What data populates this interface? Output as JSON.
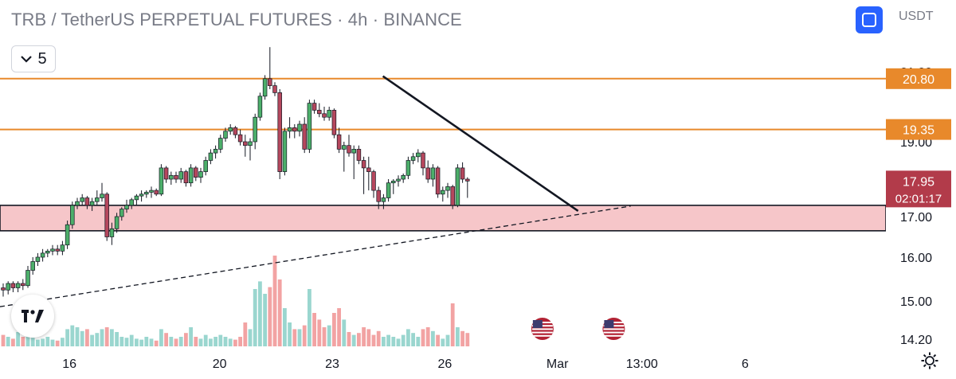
{
  "header": {
    "symbol_title": "TRB / TetherUS PERPETUAL FUTURES · 4h · BINANCE",
    "currency": "USDT",
    "indicator_count": "5"
  },
  "icons": {
    "fullscreen": "fullscreen-icon",
    "collapse": "chevron-down-icon",
    "settings": "gear-icon",
    "logo": "tradingview-logo-icon",
    "event": "us-flag-icon"
  },
  "colors": {
    "bull": "#4caf6a",
    "bear": "#b5475d",
    "bull_volume": "#9ad6cf",
    "bear_volume": "#f2a3a3",
    "level_line": "#e8892b",
    "zone_fill": "#f6c6c9",
    "current_price_bg": "#b23b4a"
  },
  "chart_data": {
    "type": "candlestick",
    "x_axis": {
      "ticks": [
        {
          "label": "16",
          "x": 1.0
        },
        {
          "label": "20",
          "x": 5.0
        },
        {
          "label": "23",
          "x": 8.0
        },
        {
          "label": "26",
          "x": 11.0
        },
        {
          "label": "Mar",
          "x": 14.0
        },
        {
          "label": "13:00",
          "x": 16.25
        },
        {
          "label": "6",
          "x": 19.0
        }
      ],
      "range_days": [
        -0.85,
        22.75
      ]
    },
    "y_axis": {
      "ticks": [
        "21.00",
        "19.00",
        "17.00",
        "16.00",
        "15.00",
        "14.20"
      ],
      "range": [
        14.1,
        21.4
      ]
    },
    "current_price": {
      "value": "17.95",
      "countdown": "02:01:17"
    },
    "horizontal_levels": [
      {
        "value": 20.8,
        "label": "20.80"
      },
      {
        "value": 19.35,
        "label": "19.35"
      }
    ],
    "zone": {
      "top": 17.3,
      "bottom": 16.65
    },
    "trendlines": [
      {
        "style": "solid",
        "from": {
          "day": 9.35,
          "price": 20.87
        },
        "to": {
          "day": 14.55,
          "price": 17.15
        }
      },
      {
        "style": "dashed",
        "from": {
          "day": -0.85,
          "price": 14.88
        },
        "to": {
          "day": 15.95,
          "price": 17.28
        }
      }
    ],
    "event_markers": [
      {
        "day": 13.6
      },
      {
        "day": 15.5
      }
    ],
    "candles_ohlc": [
      [
        15.3,
        15.4,
        15.1,
        15.25
      ],
      [
        15.25,
        15.45,
        15.15,
        15.4
      ],
      [
        15.4,
        15.45,
        15.2,
        15.3
      ],
      [
        15.3,
        15.45,
        15.2,
        15.4
      ],
      [
        15.4,
        15.5,
        15.25,
        15.35
      ],
      [
        15.35,
        15.8,
        15.3,
        15.7
      ],
      [
        15.7,
        16.0,
        15.6,
        15.9
      ],
      [
        15.9,
        16.1,
        15.8,
        16.0
      ],
      [
        16.0,
        16.2,
        15.9,
        16.1
      ],
      [
        16.1,
        16.2,
        16.0,
        16.15
      ],
      [
        16.15,
        16.3,
        16.05,
        16.2
      ],
      [
        16.2,
        16.3,
        16.05,
        16.15
      ],
      [
        16.15,
        16.4,
        16.05,
        16.3
      ],
      [
        16.3,
        16.9,
        16.2,
        16.8
      ],
      [
        16.8,
        17.4,
        16.7,
        17.3
      ],
      [
        17.3,
        17.5,
        17.2,
        17.4
      ],
      [
        17.4,
        17.6,
        17.3,
        17.5
      ],
      [
        17.5,
        17.55,
        17.2,
        17.3
      ],
      [
        17.3,
        17.5,
        17.15,
        17.4
      ],
      [
        17.4,
        17.7,
        17.3,
        17.5
      ],
      [
        17.5,
        17.9,
        17.4,
        17.6
      ],
      [
        17.6,
        17.65,
        16.4,
        16.5
      ],
      [
        16.5,
        16.85,
        16.3,
        16.7
      ],
      [
        16.7,
        17.1,
        16.6,
        17.0
      ],
      [
        17.0,
        17.25,
        16.9,
        17.2
      ],
      [
        17.2,
        17.45,
        17.1,
        17.3
      ],
      [
        17.3,
        17.5,
        17.2,
        17.45
      ],
      [
        17.45,
        17.6,
        17.3,
        17.55
      ],
      [
        17.55,
        17.7,
        17.4,
        17.6
      ],
      [
        17.6,
        17.7,
        17.5,
        17.65
      ],
      [
        17.65,
        17.8,
        17.5,
        17.7
      ],
      [
        17.7,
        17.75,
        17.55,
        17.6
      ],
      [
        17.6,
        18.4,
        17.55,
        18.3
      ],
      [
        18.3,
        18.35,
        17.9,
        18.0
      ],
      [
        18.0,
        18.2,
        17.85,
        18.1
      ],
      [
        18.1,
        18.2,
        17.9,
        18.0
      ],
      [
        18.0,
        18.3,
        17.9,
        18.2
      ],
      [
        18.2,
        18.25,
        17.8,
        17.9
      ],
      [
        17.9,
        18.4,
        17.8,
        18.3
      ],
      [
        18.3,
        18.35,
        17.95,
        18.05
      ],
      [
        18.05,
        18.3,
        17.9,
        18.2
      ],
      [
        18.2,
        18.6,
        18.1,
        18.5
      ],
      [
        18.5,
        18.8,
        18.4,
        18.7
      ],
      [
        18.7,
        18.9,
        18.55,
        18.8
      ],
      [
        18.8,
        19.2,
        18.7,
        19.1
      ],
      [
        19.1,
        19.4,
        19.0,
        19.3
      ],
      [
        19.3,
        19.5,
        19.2,
        19.4
      ],
      [
        19.4,
        19.45,
        19.1,
        19.2
      ],
      [
        19.2,
        19.35,
        18.9,
        19.0
      ],
      [
        19.0,
        19.2,
        18.6,
        18.9
      ],
      [
        18.9,
        19.1,
        18.5,
        19.0
      ],
      [
        19.0,
        19.8,
        18.8,
        19.7
      ],
      [
        19.7,
        20.4,
        19.6,
        20.3
      ],
      [
        20.3,
        20.9,
        20.2,
        20.8
      ],
      [
        20.8,
        21.7,
        20.5,
        20.6
      ],
      [
        20.6,
        20.7,
        20.3,
        20.4
      ],
      [
        20.4,
        20.5,
        18.0,
        18.2
      ],
      [
        18.2,
        19.4,
        18.1,
        19.3
      ],
      [
        19.3,
        19.7,
        19.1,
        19.4
      ],
      [
        19.4,
        19.5,
        19.1,
        19.3
      ],
      [
        19.3,
        19.6,
        19.15,
        19.5
      ],
      [
        19.5,
        19.7,
        18.7,
        18.8
      ],
      [
        18.8,
        20.2,
        18.7,
        20.1
      ],
      [
        20.1,
        20.2,
        19.8,
        19.9
      ],
      [
        19.9,
        20.1,
        19.7,
        19.8
      ],
      [
        19.8,
        20.0,
        19.6,
        19.7
      ],
      [
        19.7,
        20.0,
        19.6,
        19.9
      ],
      [
        19.9,
        19.95,
        19.1,
        19.2
      ],
      [
        19.2,
        19.4,
        18.7,
        18.8
      ],
      [
        18.8,
        19.0,
        18.2,
        18.9
      ],
      [
        18.9,
        19.2,
        18.6,
        18.7
      ],
      [
        18.7,
        18.9,
        18.0,
        18.8
      ],
      [
        18.8,
        18.9,
        18.4,
        18.5
      ],
      [
        18.5,
        18.6,
        17.6,
        18.3
      ],
      [
        18.3,
        18.6,
        17.7,
        18.2
      ],
      [
        18.2,
        18.25,
        17.5,
        17.7
      ],
      [
        17.7,
        17.8,
        17.2,
        17.4
      ],
      [
        17.4,
        17.6,
        17.2,
        17.5
      ],
      [
        17.5,
        18.0,
        17.4,
        17.9
      ],
      [
        17.9,
        18.0,
        17.6,
        17.95
      ],
      [
        17.95,
        18.1,
        17.8,
        18.0
      ],
      [
        18.0,
        18.15,
        17.9,
        18.1
      ],
      [
        18.1,
        18.6,
        18.0,
        18.5
      ],
      [
        18.5,
        18.7,
        18.4,
        18.6
      ],
      [
        18.6,
        18.8,
        18.45,
        18.7
      ],
      [
        18.7,
        18.75,
        18.1,
        18.3
      ],
      [
        18.3,
        18.5,
        17.9,
        18.0
      ],
      [
        18.0,
        18.4,
        17.8,
        18.3
      ],
      [
        18.3,
        18.35,
        17.5,
        17.6
      ],
      [
        17.6,
        17.8,
        17.4,
        17.7
      ],
      [
        17.7,
        17.9,
        17.5,
        17.8
      ],
      [
        17.8,
        17.85,
        17.2,
        17.3
      ],
      [
        17.3,
        18.4,
        17.25,
        18.3
      ],
      [
        18.3,
        18.45,
        17.9,
        18.0
      ],
      [
        18.0,
        18.05,
        17.5,
        17.95
      ]
    ],
    "volume": [
      0.12,
      0.1,
      0.08,
      0.15,
      0.1,
      0.12,
      0.09,
      0.07,
      0.08,
      0.1,
      0.07,
      0.06,
      0.09,
      0.18,
      0.22,
      0.2,
      0.16,
      0.18,
      0.12,
      0.14,
      0.18,
      0.2,
      0.18,
      0.15,
      0.1,
      0.09,
      0.12,
      0.08,
      0.07,
      0.1,
      0.08,
      0.06,
      0.18,
      0.14,
      0.1,
      0.08,
      0.1,
      0.14,
      0.2,
      0.1,
      0.08,
      0.12,
      0.08,
      0.1,
      0.12,
      0.1,
      0.08,
      0.07,
      0.1,
      0.25,
      0.18,
      0.6,
      0.68,
      0.55,
      0.62,
      0.95,
      0.7,
      0.4,
      0.25,
      0.18,
      0.18,
      0.22,
      0.6,
      0.35,
      0.28,
      0.2,
      0.22,
      0.35,
      0.4,
      0.28,
      0.15,
      0.12,
      0.14,
      0.2,
      0.18,
      0.12,
      0.16,
      0.1,
      0.12,
      0.1,
      0.08,
      0.12,
      0.18,
      0.14,
      0.1,
      0.18,
      0.2,
      0.16,
      0.12,
      0.08,
      0.12,
      0.45,
      0.2,
      0.16,
      0.14
    ]
  }
}
